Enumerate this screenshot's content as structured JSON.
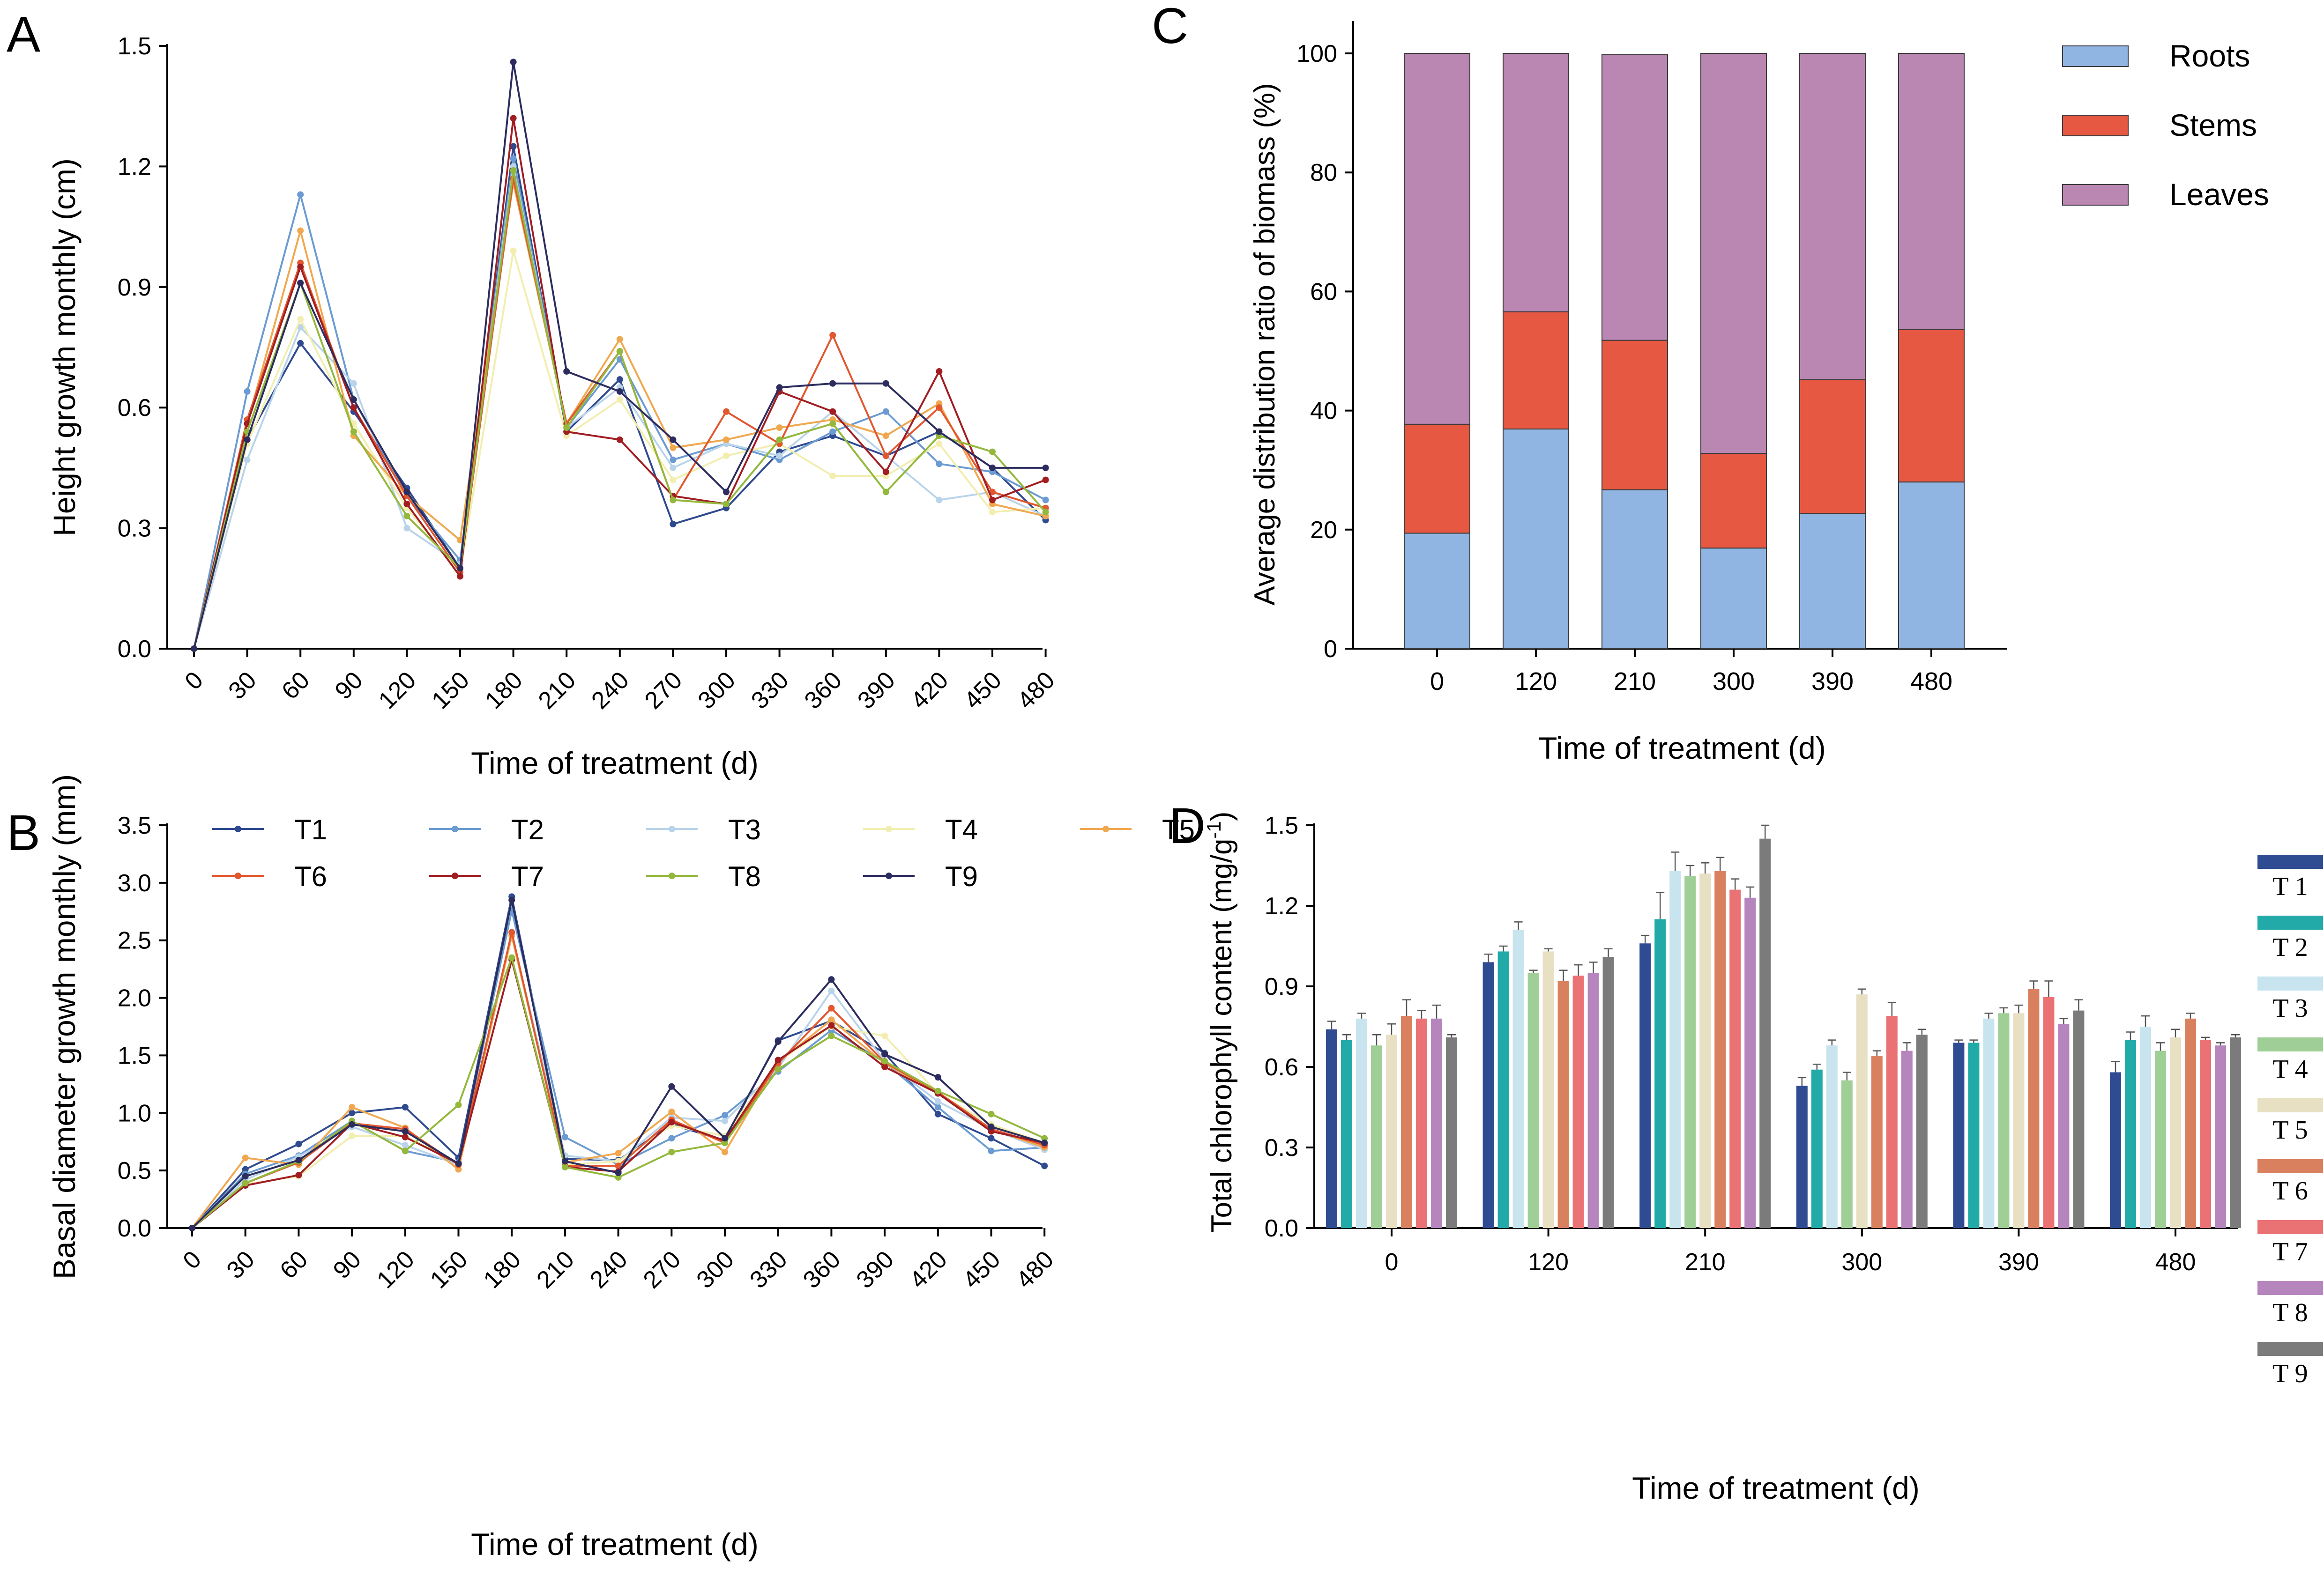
{
  "figure": {
    "colors": {
      "T1": "#2f4a8f",
      "T2": "#6b9bd2",
      "T3": "#b9d4ea",
      "T4": "#f2eeb0",
      "T5": "#f0a850",
      "T6": "#e2572f",
      "T7": "#a01d22",
      "T8": "#93b83c",
      "T9": "#2c2c5e",
      "Roots": "#91b5e2",
      "Stems": "#e75843",
      "Leaves": "#ba86b2",
      "D_T1": "#2f4b92",
      "D_T2": "#21aaa8",
      "D_T3": "#c7e4ef",
      "D_T4": "#9fcf96",
      "D_T5": "#e8e0c2",
      "D_T6": "#d9815f",
      "D_T7": "#eb7274",
      "D_T8": "#b685bd",
      "D_T9": "#7b7b7b"
    }
  },
  "chart_data": [
    {
      "panel": "A",
      "type": "line",
      "xlabel": "Time of treatment (d)",
      "ylabel": "Height growth monthly (cm)",
      "ylim": [
        0,
        1.5
      ],
      "yticks": [
        "0.0",
        "0.3",
        "0.6",
        "0.9",
        "1.2",
        "1.5"
      ],
      "x": [
        0,
        30,
        60,
        90,
        120,
        150,
        180,
        210,
        240,
        270,
        300,
        330,
        360,
        390,
        420,
        450,
        480
      ],
      "xticks": [
        "0",
        "30",
        "60",
        "90",
        "120",
        "150",
        "180",
        "210",
        "240",
        "270",
        "300",
        "330",
        "360",
        "390",
        "420",
        "450",
        "480"
      ],
      "series": [
        {
          "name": "T1",
          "values": [
            0,
            0.52,
            0.76,
            0.59,
            0.4,
            0.2,
            1.25,
            0.54,
            0.67,
            0.31,
            0.35,
            0.49,
            0.53,
            0.48,
            0.54,
            0.45,
            0.32
          ]
        },
        {
          "name": "T2",
          "values": [
            0,
            0.64,
            1.13,
            0.62,
            0.38,
            0.22,
            1.22,
            0.55,
            0.72,
            0.47,
            0.51,
            0.47,
            0.54,
            0.59,
            0.46,
            0.44,
            0.37
          ]
        },
        {
          "name": "T3",
          "values": [
            0,
            0.47,
            0.8,
            0.66,
            0.3,
            0.21,
            1.2,
            0.55,
            0.65,
            0.45,
            0.51,
            0.48,
            0.59,
            0.48,
            0.37,
            0.39,
            0.33
          ]
        },
        {
          "name": "T4",
          "values": [
            0,
            0.51,
            0.82,
            0.56,
            0.35,
            0.19,
            0.99,
            0.53,
            0.62,
            0.42,
            0.48,
            0.51,
            0.43,
            0.43,
            0.51,
            0.34,
            0.35
          ]
        },
        {
          "name": "T5",
          "values": [
            0,
            0.56,
            1.04,
            0.53,
            0.38,
            0.27,
            1.16,
            0.56,
            0.77,
            0.5,
            0.52,
            0.55,
            0.57,
            0.53,
            0.61,
            0.36,
            0.33
          ]
        },
        {
          "name": "T6",
          "values": [
            0,
            0.57,
            0.96,
            0.6,
            0.38,
            0.19,
            1.17,
            0.56,
            0.74,
            0.37,
            0.59,
            0.51,
            0.78,
            0.48,
            0.6,
            0.39,
            0.35
          ]
        },
        {
          "name": "T7",
          "values": [
            0,
            0.56,
            0.95,
            0.6,
            0.36,
            0.18,
            1.32,
            0.54,
            0.52,
            0.38,
            0.36,
            0.64,
            0.59,
            0.44,
            0.69,
            0.37,
            0.42
          ]
        },
        {
          "name": "T8",
          "values": [
            0,
            0.54,
            0.91,
            0.54,
            0.33,
            0.2,
            1.19,
            0.55,
            0.74,
            0.37,
            0.36,
            0.52,
            0.56,
            0.39,
            0.53,
            0.49,
            0.34
          ]
        },
        {
          "name": "T9",
          "values": [
            0,
            0.52,
            0.91,
            0.62,
            0.39,
            0.2,
            1.46,
            0.69,
            0.64,
            0.52,
            0.39,
            0.65,
            0.66,
            0.66,
            0.54,
            0.45,
            0.45
          ]
        }
      ]
    },
    {
      "panel": "B",
      "type": "line",
      "xlabel": "Time of treatment (d)",
      "ylabel": "Basal diameter growth monthly (mm)",
      "ylim": [
        0,
        3.5
      ],
      "yticks": [
        "0.0",
        "0.5",
        "1.0",
        "1.5",
        "2.0",
        "2.5",
        "3.0",
        "3.5"
      ],
      "x": [
        0,
        30,
        60,
        90,
        120,
        150,
        180,
        210,
        240,
        270,
        300,
        330,
        360,
        390,
        420,
        450,
        480
      ],
      "xticks": [
        "0",
        "30",
        "60",
        "90",
        "120",
        "150",
        "180",
        "210",
        "240",
        "270",
        "300",
        "330",
        "360",
        "390",
        "420",
        "450",
        "480"
      ],
      "legend": [
        "T1",
        "T2",
        "T3",
        "T4",
        "T5",
        "T6",
        "T7",
        "T8",
        "T9"
      ],
      "series": [
        {
          "name": "T1",
          "values": [
            0,
            0.51,
            0.73,
            1.0,
            1.05,
            0.61,
            2.88,
            0.6,
            0.59,
            0.9,
            0.76,
            1.63,
            1.8,
            1.52,
            0.99,
            0.78,
            0.54
          ]
        },
        {
          "name": "T2",
          "values": [
            0,
            0.47,
            0.63,
            0.93,
            0.67,
            0.57,
            2.76,
            0.79,
            0.55,
            0.78,
            0.98,
            1.36,
            1.72,
            1.44,
            1.05,
            0.67,
            0.7
          ]
        },
        {
          "name": "T3",
          "values": [
            0,
            0.42,
            0.62,
            0.88,
            0.72,
            0.55,
            2.55,
            0.63,
            0.58,
            0.96,
            0.93,
            1.39,
            2.06,
            1.45,
            1.1,
            0.86,
            0.68
          ]
        },
        {
          "name": "T4",
          "values": [
            0,
            0.38,
            0.45,
            0.8,
            0.8,
            0.56,
            2.54,
            0.55,
            0.58,
            0.89,
            0.8,
            1.45,
            1.75,
            1.67,
            1.17,
            0.9,
            0.74
          ]
        },
        {
          "name": "T5",
          "values": [
            0,
            0.61,
            0.55,
            1.05,
            0.87,
            0.51,
            2.54,
            0.57,
            0.65,
            1.01,
            0.66,
            1.44,
            1.81,
            1.43,
            1.17,
            0.86,
            0.7
          ]
        },
        {
          "name": "T6",
          "values": [
            0,
            0.39,
            0.57,
            0.91,
            0.86,
            0.55,
            2.57,
            0.54,
            0.54,
            0.94,
            0.74,
            1.43,
            1.91,
            1.44,
            1.18,
            0.86,
            0.72
          ]
        },
        {
          "name": "T7",
          "values": [
            0,
            0.37,
            0.46,
            0.91,
            0.79,
            0.56,
            2.33,
            0.53,
            0.49,
            0.92,
            0.76,
            1.46,
            1.76,
            1.4,
            1.17,
            0.84,
            0.74
          ]
        },
        {
          "name": "T8",
          "values": [
            0,
            0.39,
            0.58,
            0.93,
            0.67,
            1.07,
            2.35,
            0.53,
            0.44,
            0.66,
            0.74,
            1.38,
            1.67,
            1.45,
            1.19,
            0.99,
            0.78
          ]
        },
        {
          "name": "T9",
          "values": [
            0,
            0.45,
            0.59,
            0.9,
            0.84,
            0.56,
            2.85,
            0.58,
            0.48,
            1.23,
            0.78,
            1.62,
            2.16,
            1.51,
            1.31,
            0.88,
            0.74
          ]
        }
      ]
    },
    {
      "panel": "C",
      "type": "bar",
      "stacked": true,
      "xlabel": "Time of treatment (d)",
      "ylabel": "Average distribution ratio of biomass (%)",
      "ylim": [
        0,
        105
      ],
      "yticks": [
        "0",
        "20",
        "40",
        "60",
        "80",
        "100"
      ],
      "categories": [
        "0",
        "120",
        "210",
        "300",
        "390",
        "480"
      ],
      "series": [
        {
          "name": "Roots",
          "values": [
            19.4,
            36.9,
            26.7,
            16.9,
            22.7,
            28.0
          ]
        },
        {
          "name": "Stems",
          "values": [
            18.3,
            19.7,
            25.1,
            15.9,
            22.5,
            25.6
          ]
        },
        {
          "name": "Leaves",
          "values": [
            62.3,
            43.4,
            48.0,
            67.2,
            54.8,
            46.4
          ]
        }
      ],
      "legend": [
        "Roots",
        "Stems",
        "Leaves"
      ]
    },
    {
      "panel": "D",
      "type": "bar",
      "xlabel": "Time of treatment (d)",
      "ylabel": "Total chlorophyll content (mg/g",
      "ylabel_sup": "-1",
      "ylabel_end": ")",
      "ylim": [
        0,
        1.5
      ],
      "yticks": [
        "0.0",
        "0.3",
        "0.6",
        "0.9",
        "1.2",
        "1.5"
      ],
      "categories": [
        "0",
        "120",
        "210",
        "300",
        "390",
        "480"
      ],
      "legend": [
        "T 1",
        "T 2",
        "T 3",
        "T 4",
        "T 5",
        "T 6",
        "T 7",
        "T 8",
        "T 9"
      ],
      "series": [
        {
          "name": "T1",
          "values": [
            0.74,
            0.99,
            1.06,
            0.53,
            0.69,
            0.58
          ],
          "errors": [
            0.03,
            0.03,
            0.03,
            0.03,
            0.01,
            0.04
          ]
        },
        {
          "name": "T2",
          "values": [
            0.7,
            1.03,
            1.15,
            0.59,
            0.69,
            0.7
          ],
          "errors": [
            0.02,
            0.02,
            0.1,
            0.02,
            0.01,
            0.03
          ]
        },
        {
          "name": "T3",
          "values": [
            0.78,
            1.11,
            1.33,
            0.68,
            0.78,
            0.75
          ],
          "errors": [
            0.02,
            0.03,
            0.07,
            0.02,
            0.02,
            0.04
          ]
        },
        {
          "name": "T4",
          "values": [
            0.68,
            0.95,
            1.31,
            0.55,
            0.8,
            0.66
          ],
          "errors": [
            0.04,
            0.01,
            0.04,
            0.03,
            0.02,
            0.03
          ]
        },
        {
          "name": "T5",
          "values": [
            0.72,
            1.03,
            1.32,
            0.87,
            0.8,
            0.71
          ],
          "errors": [
            0.04,
            0.01,
            0.04,
            0.02,
            0.03,
            0.03
          ]
        },
        {
          "name": "T6",
          "values": [
            0.79,
            0.92,
            1.33,
            0.64,
            0.89,
            0.78
          ],
          "errors": [
            0.06,
            0.04,
            0.05,
            0.02,
            0.03,
            0.02
          ]
        },
        {
          "name": "T7",
          "values": [
            0.78,
            0.94,
            1.26,
            0.79,
            0.86,
            0.7
          ],
          "errors": [
            0.03,
            0.04,
            0.04,
            0.05,
            0.06,
            0.01
          ]
        },
        {
          "name": "T8",
          "values": [
            0.78,
            0.95,
            1.23,
            0.66,
            0.76,
            0.68
          ],
          "errors": [
            0.05,
            0.04,
            0.04,
            0.03,
            0.02,
            0.01
          ]
        },
        {
          "name": "T9",
          "values": [
            0.71,
            1.01,
            1.45,
            0.72,
            0.81,
            0.71
          ],
          "errors": [
            0.01,
            0.03,
            0.05,
            0.02,
            0.04,
            0.01
          ]
        }
      ]
    }
  ]
}
